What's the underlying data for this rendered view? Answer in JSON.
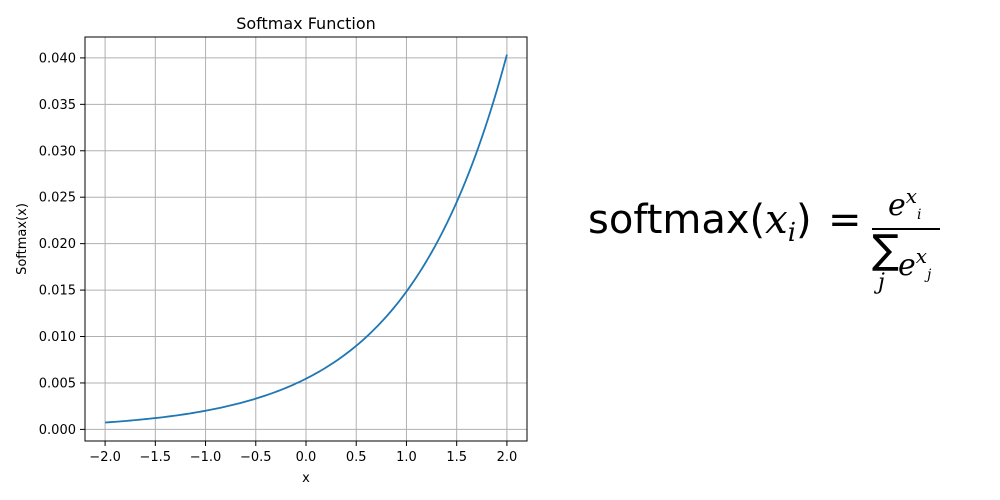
{
  "chart_data": {
    "type": "line",
    "title": "Softmax Function",
    "xlabel": "x",
    "ylabel": "Softmax(x)",
    "xlim": [
      -2.2,
      2.2
    ],
    "ylim": [
      -0.00125,
      0.04225
    ],
    "xticks": [
      -2.0,
      -1.5,
      -1.0,
      -0.5,
      0.0,
      0.5,
      1.0,
      1.5,
      2.0
    ],
    "xtick_labels": [
      "−2.0",
      "−1.5",
      "−1.0",
      "−0.5",
      "0.0",
      "0.5",
      "1.0",
      "1.5",
      "2.0"
    ],
    "yticks": [
      0.0,
      0.005,
      0.01,
      0.015,
      0.02,
      0.025,
      0.03,
      0.035,
      0.04
    ],
    "ytick_labels": [
      "0.000",
      "0.005",
      "0.010",
      "0.015",
      "0.020",
      "0.025",
      "0.030",
      "0.035",
      "0.040"
    ],
    "grid": true,
    "series": [
      {
        "color": "#1f77b4",
        "x": [
          -2.0,
          -1.75,
          -1.5,
          -1.25,
          -1.0,
          -0.75,
          -0.5,
          -0.25,
          0.0,
          0.25,
          0.5,
          0.75,
          1.0,
          1.25,
          1.5,
          1.75,
          2.0
        ],
        "y": [
          0.00074,
          0.00095,
          0.00122,
          0.00156,
          0.00201,
          0.00258,
          0.00331,
          0.00425,
          0.00546,
          0.00701,
          0.009,
          0.01156,
          0.01484,
          0.01906,
          0.02447,
          0.03142,
          0.04035
        ]
      }
    ]
  },
  "formula": {
    "lhs_func": "softmax",
    "lhs_open": "(",
    "lhs_var": "x",
    "lhs_sub": "i",
    "lhs_close": ")",
    "equals": "=",
    "num_base": "e",
    "num_sup_var": "x",
    "num_sup_sub": "i",
    "sum_symbol": "∑",
    "sum_index": "j",
    "den_base": "e",
    "den_sup_var": "x",
    "den_sup_sub": "j"
  }
}
